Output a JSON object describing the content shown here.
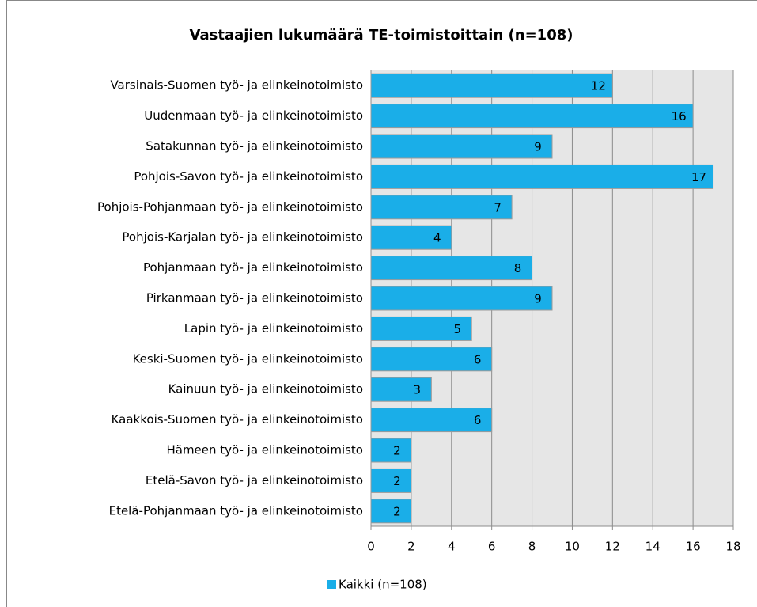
{
  "chart_data": {
    "type": "bar",
    "orientation": "horizontal",
    "title": "Vastaajien lukumäärä TE-toimistoittain (n=108)",
    "categories": [
      "Varsinais-Suomen työ- ja elinkeinotoimisto",
      "Uudenmaan työ- ja elinkeinotoimisto",
      "Satakunnan työ- ja elinkeinotoimisto",
      "Pohjois-Savon työ- ja elinkeinotoimisto",
      "Pohjois-Pohjanmaan työ- ja elinkeinotoimisto",
      "Pohjois-Karjalan työ- ja elinkeinotoimisto",
      "Pohjanmaan työ- ja elinkeinotoimisto",
      "Pirkanmaan työ- ja elinkeinotoimisto",
      "Lapin työ- ja elinkeinotoimisto",
      "Keski-Suomen työ- ja elinkeinotoimisto",
      "Kainuun työ- ja elinkeinotoimisto",
      "Kaakkois-Suomen työ- ja elinkeinotoimisto",
      "Hämeen työ- ja elinkeinotoimisto",
      "Etelä-Savon työ- ja elinkeinotoimisto",
      "Etelä-Pohjanmaan työ- ja elinkeinotoimisto"
    ],
    "series": [
      {
        "name": "Kaikki (n=108)",
        "color": "#1aaee8",
        "values": [
          12,
          16,
          9,
          17,
          7,
          4,
          8,
          9,
          5,
          6,
          3,
          6,
          2,
          2,
          2
        ]
      }
    ],
    "xlim": [
      0,
      18
    ],
    "xticks": [
      0,
      2,
      4,
      6,
      8,
      10,
      12,
      14,
      16,
      18
    ],
    "grid": true,
    "legend": "bottom"
  }
}
